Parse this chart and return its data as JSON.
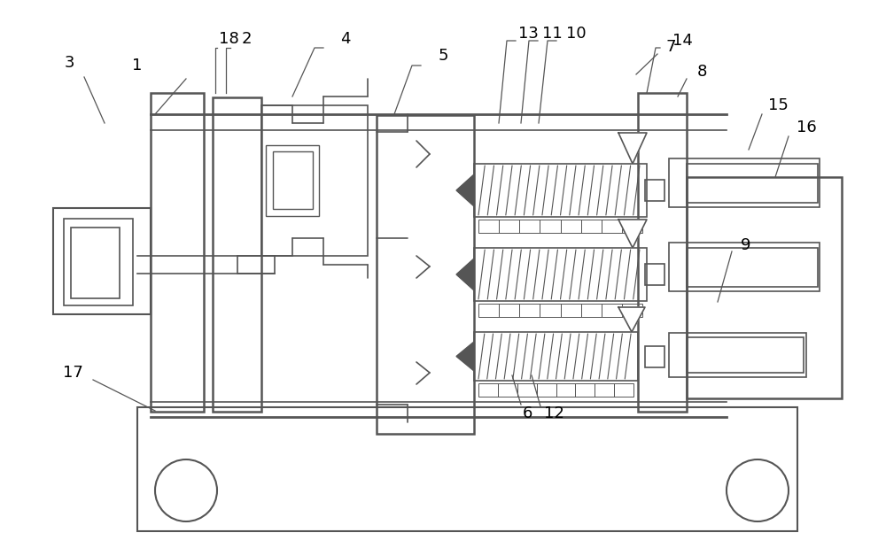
{
  "bg_color": "#ffffff",
  "line_color": "#555555",
  "fig_width": 10.0,
  "fig_height": 6.19,
  "dpi": 100
}
